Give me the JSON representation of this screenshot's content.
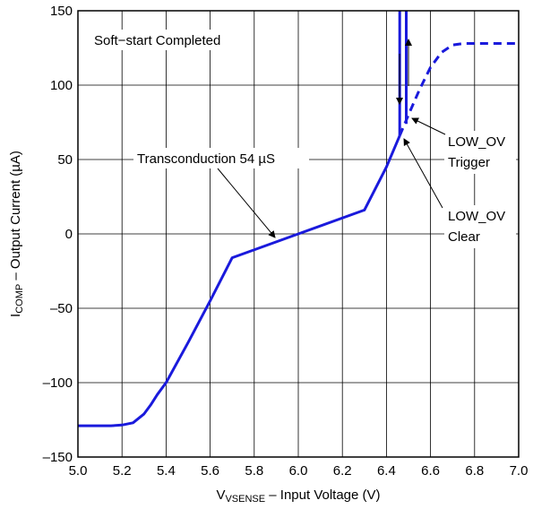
{
  "chart_data": {
    "type": "line",
    "xlabel": {
      "main": "V",
      "sub": "VSENSE",
      "rest": " – Input Voltage (V)"
    },
    "ylabel": {
      "main": "I",
      "sub": "COMP",
      "rest": " – Output Current (µA)"
    },
    "xlim": [
      5.0,
      7.0
    ],
    "ylim": [
      -150,
      150
    ],
    "x_ticks": [
      5.0,
      5.2,
      5.4,
      5.6,
      5.8,
      6.0,
      6.2,
      6.4,
      6.6,
      6.8,
      7.0
    ],
    "x_tick_labels": [
      "5.0",
      "5.2",
      "5.4",
      "5.6",
      "5.8",
      "6.0",
      "6.2",
      "6.4",
      "6.6",
      "6.8",
      "7.0"
    ],
    "y_ticks": [
      -150,
      -100,
      -50,
      0,
      50,
      100,
      150
    ],
    "y_tick_labels": [
      "–150",
      "–100",
      "–50",
      "0",
      "50",
      "100",
      "150"
    ],
    "grid": true,
    "color": "#1a1adc",
    "series": [
      {
        "style": "solid",
        "x": [
          5.0,
          5.15,
          5.2,
          5.25,
          5.3,
          5.33,
          5.36,
          5.4,
          5.5,
          5.6,
          5.7,
          6.0,
          6.3,
          6.4,
          6.46
        ],
        "y": [
          -129,
          -129,
          -128.5,
          -127,
          -121,
          -115,
          -108,
          -100,
          -73,
          -45,
          -16,
          0,
          16,
          45,
          66
        ]
      },
      {
        "style": "solid",
        "x": [
          6.46,
          6.46
        ],
        "y": [
          66,
          150
        ]
      },
      {
        "style": "solid",
        "x": [
          6.49,
          6.49
        ],
        "y": [
          74,
          150
        ]
      },
      {
        "style": "dashed",
        "x": [
          6.46,
          6.5,
          6.55,
          6.6,
          6.65,
          6.7,
          6.75,
          6.8,
          7.0
        ],
        "y": [
          66,
          80,
          97,
          112,
          122,
          127,
          128,
          128,
          128
        ]
      }
    ],
    "annotations": {
      "title_note": "Soft−start Completed",
      "transconductance": "Transconduction 54 µS",
      "trigger_line1": "LOW_OV",
      "trigger_line2": "Trigger",
      "clear_line1": "LOW_OV",
      "clear_line2": "Clear"
    }
  }
}
